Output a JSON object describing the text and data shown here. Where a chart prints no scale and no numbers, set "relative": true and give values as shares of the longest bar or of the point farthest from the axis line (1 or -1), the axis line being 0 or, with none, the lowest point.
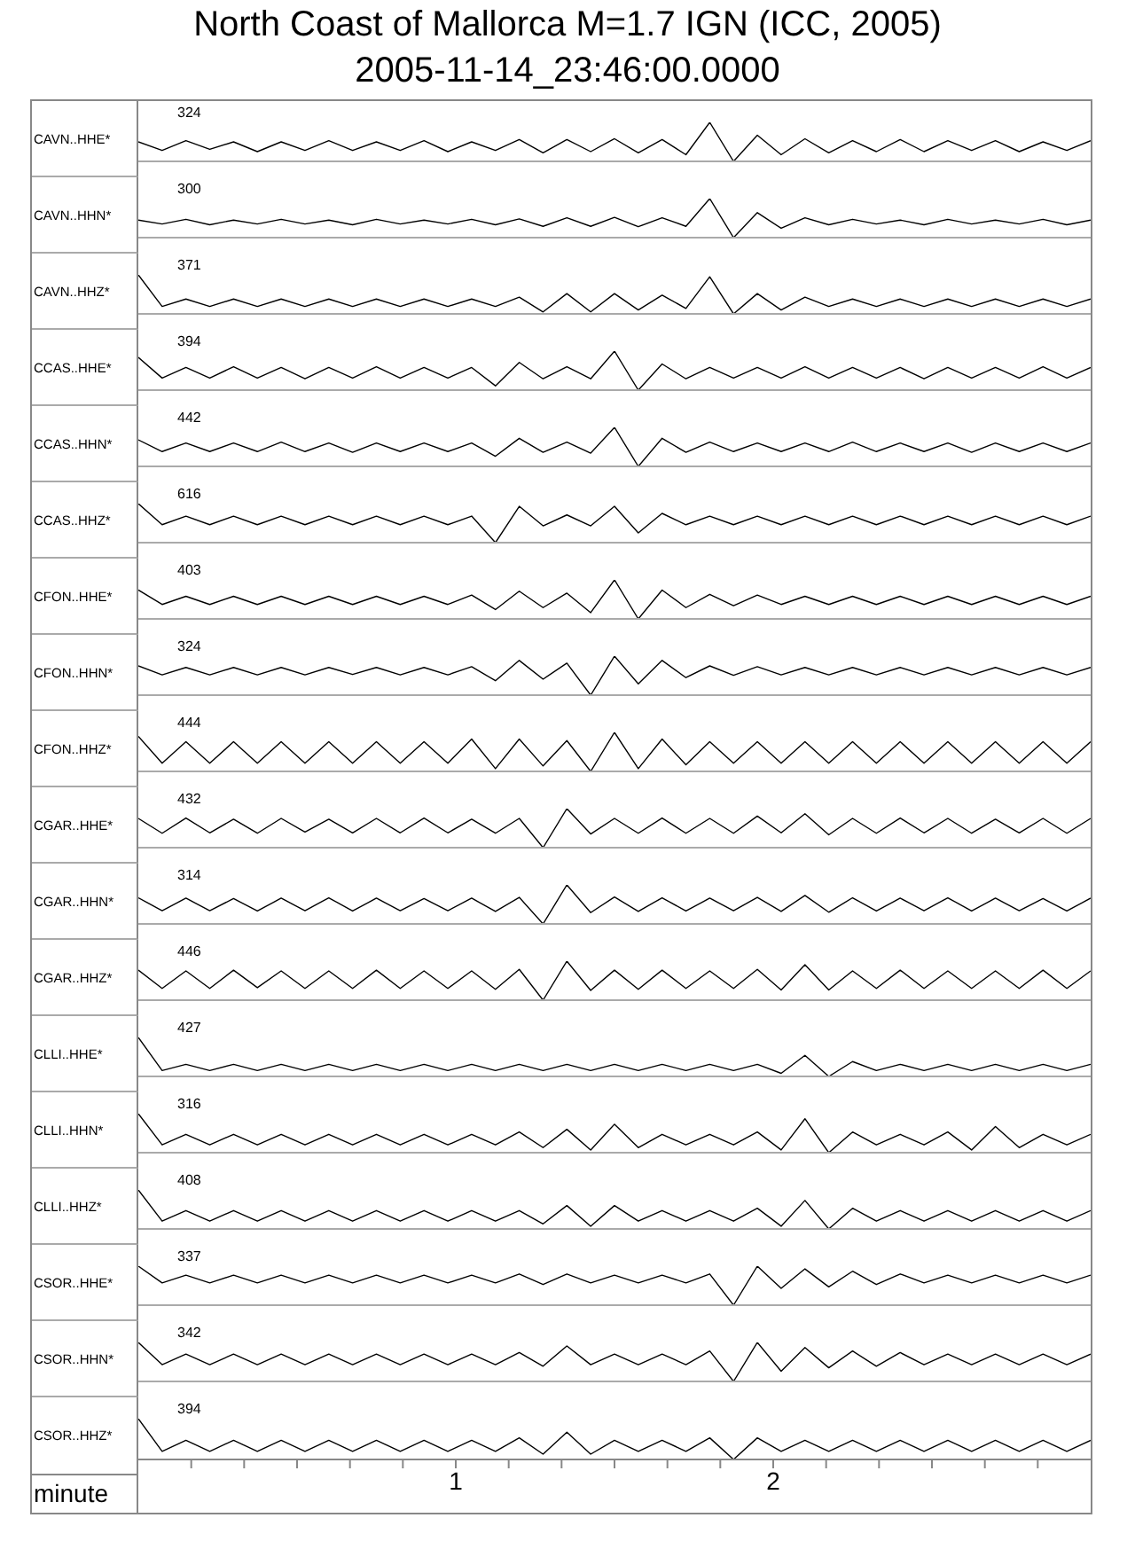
{
  "chart_data": [
    {
      "type": "line",
      "title": "North Coast of Mallorca M=1.7 IGN (ICC, 2005)",
      "subtitle": "2005-11-14_23:46:00.0000",
      "ylabel": "CAVN..HHE*",
      "annotations": [
        "324"
      ],
      "relative": true,
      "xlim": [
        0,
        3
      ],
      "tick_labels": false,
      "color": "#000000",
      "x": [
        0,
        0.075,
        0.15,
        0.225,
        0.3,
        0.375,
        0.45,
        0.525,
        0.6,
        0.675,
        0.75,
        0.825,
        0.9,
        0.975,
        1.05,
        1.125,
        1.2,
        1.275,
        1.35,
        1.425,
        1.5,
        1.575,
        1.65,
        1.725,
        1.8,
        1.875,
        1.95,
        2.025,
        2.1,
        2.175,
        2.25,
        2.325,
        2.4,
        2.475,
        2.55,
        2.625,
        2.7,
        2.775,
        2.85,
        2.925,
        3
      ],
      "values": [
        0.5,
        0.28,
        0.53,
        0.31,
        0.5,
        0.25,
        0.5,
        0.28,
        0.53,
        0.28,
        0.5,
        0.28,
        0.53,
        0.25,
        0.5,
        0.28,
        0.56,
        0.22,
        0.56,
        0.25,
        0.58,
        0.22,
        0.56,
        0.17,
        1,
        0,
        0.67,
        0.17,
        0.58,
        0.22,
        0.53,
        0.25,
        0.56,
        0.25,
        0.53,
        0.28,
        0.53,
        0.25,
        0.5,
        0.28,
        0.53
      ]
    },
    {
      "type": "line",
      "ylabel": "CAVN..HHN*",
      "annotations": [
        "300"
      ],
      "relative": true,
      "xlim": [
        0,
        3
      ],
      "tick_labels": false,
      "color": "#000000",
      "x": [
        0,
        0.075,
        0.15,
        0.225,
        0.3,
        0.375,
        0.45,
        0.525,
        0.6,
        0.675,
        0.75,
        0.825,
        0.9,
        0.975,
        1.05,
        1.125,
        1.2,
        1.275,
        1.35,
        1.425,
        1.5,
        1.575,
        1.65,
        1.725,
        1.8,
        1.875,
        1.95,
        2.025,
        2.1,
        2.175,
        2.25,
        2.325,
        2.4,
        2.475,
        2.55,
        2.625,
        2.7,
        2.775,
        2.85,
        2.925,
        3
      ],
      "values": [
        0.45,
        0.35,
        0.47,
        0.33,
        0.45,
        0.35,
        0.47,
        0.35,
        0.45,
        0.33,
        0.47,
        0.35,
        0.45,
        0.35,
        0.47,
        0.33,
        0.48,
        0.29,
        0.51,
        0.29,
        0.52,
        0.28,
        0.51,
        0.29,
        1,
        0,
        0.64,
        0.24,
        0.51,
        0.33,
        0.47,
        0.35,
        0.45,
        0.33,
        0.47,
        0.35,
        0.45,
        0.35,
        0.47,
        0.33,
        0.45
      ]
    },
    {
      "type": "line",
      "ylabel": "CAVN..HHZ*",
      "annotations": [
        "371"
      ],
      "relative": true,
      "xlim": [
        0,
        3
      ],
      "tick_labels": false,
      "color": "#000000",
      "x": [
        0,
        0.075,
        0.15,
        0.225,
        0.3,
        0.375,
        0.45,
        0.525,
        0.6,
        0.675,
        0.75,
        0.825,
        0.9,
        0.975,
        1.05,
        1.125,
        1.2,
        1.275,
        1.35,
        1.425,
        1.5,
        1.575,
        1.65,
        1.725,
        1.8,
        1.875,
        1.95,
        2.025,
        2.1,
        2.175,
        2.25,
        2.325,
        2.4,
        2.475,
        2.55,
        2.625,
        2.7,
        2.775,
        2.85,
        2.925,
        3
      ],
      "values": [
        1,
        0.19,
        0.38,
        0.19,
        0.38,
        0.19,
        0.38,
        0.19,
        0.38,
        0.19,
        0.38,
        0.19,
        0.38,
        0.19,
        0.38,
        0.19,
        0.43,
        0.05,
        0.52,
        0.05,
        0.52,
        0.1,
        0.48,
        0.14,
        0.95,
        0,
        0.52,
        0.1,
        0.43,
        0.19,
        0.38,
        0.19,
        0.38,
        0.19,
        0.38,
        0.19,
        0.38,
        0.19,
        0.38,
        0.19,
        0.38
      ]
    },
    {
      "type": "line",
      "ylabel": "CCAS..HHE*",
      "annotations": [
        "394"
      ],
      "relative": true,
      "xlim": [
        0,
        3
      ],
      "tick_labels": false,
      "color": "#000000",
      "x": [
        0,
        0.075,
        0.15,
        0.225,
        0.3,
        0.375,
        0.45,
        0.525,
        0.6,
        0.675,
        0.75,
        0.825,
        0.9,
        0.975,
        1.05,
        1.125,
        1.2,
        1.275,
        1.35,
        1.425,
        1.5,
        1.575,
        1.65,
        1.725,
        1.8,
        1.875,
        1.95,
        2.025,
        2.1,
        2.175,
        2.25,
        2.325,
        2.4,
        2.475,
        2.55,
        2.625,
        2.7,
        2.775,
        2.85,
        2.925,
        3
      ],
      "values": [
        0.84,
        0.31,
        0.58,
        0.31,
        0.6,
        0.31,
        0.58,
        0.29,
        0.58,
        0.31,
        0.6,
        0.31,
        0.58,
        0.31,
        0.58,
        0.11,
        0.71,
        0.29,
        0.6,
        0.29,
        1,
        0,
        0.67,
        0.29,
        0.58,
        0.31,
        0.58,
        0.31,
        0.6,
        0.31,
        0.58,
        0.31,
        0.58,
        0.29,
        0.58,
        0.31,
        0.58,
        0.31,
        0.6,
        0.31,
        0.58
      ]
    },
    {
      "type": "line",
      "ylabel": "CCAS..HHN*",
      "annotations": [
        "442"
      ],
      "relative": true,
      "xlim": [
        0,
        3
      ],
      "tick_labels": false,
      "color": "#000000",
      "x": [
        0,
        0.075,
        0.15,
        0.225,
        0.3,
        0.375,
        0.45,
        0.525,
        0.6,
        0.675,
        0.75,
        0.825,
        0.9,
        0.975,
        1.05,
        1.125,
        1.2,
        1.275,
        1.35,
        1.425,
        1.5,
        1.575,
        1.65,
        1.725,
        1.8,
        1.875,
        1.95,
        2.025,
        2.1,
        2.175,
        2.25,
        2.325,
        2.4,
        2.475,
        2.55,
        2.625,
        2.7,
        2.775,
        2.85,
        2.925,
        3
      ],
      "values": [
        0.68,
        0.38,
        0.6,
        0.38,
        0.6,
        0.38,
        0.62,
        0.38,
        0.6,
        0.36,
        0.6,
        0.38,
        0.6,
        0.38,
        0.6,
        0.26,
        0.72,
        0.36,
        0.62,
        0.34,
        1,
        0,
        0.72,
        0.36,
        0.62,
        0.38,
        0.6,
        0.38,
        0.6,
        0.38,
        0.62,
        0.38,
        0.6,
        0.38,
        0.6,
        0.36,
        0.6,
        0.38,
        0.6,
        0.38,
        0.6
      ]
    },
    {
      "type": "line",
      "ylabel": "CCAS..HHZ*",
      "annotations": [
        "616"
      ],
      "relative": true,
      "xlim": [
        0,
        3
      ],
      "tick_labels": false,
      "color": "#000000",
      "x": [
        0,
        0.075,
        0.15,
        0.225,
        0.3,
        0.375,
        0.45,
        0.525,
        0.6,
        0.675,
        0.75,
        0.825,
        0.9,
        0.975,
        1.05,
        1.125,
        1.2,
        1.275,
        1.35,
        1.425,
        1.5,
        1.575,
        1.65,
        1.725,
        1.8,
        1.875,
        1.95,
        2.025,
        2.1,
        2.175,
        2.25,
        2.325,
        2.4,
        2.475,
        2.55,
        2.625,
        2.7,
        2.775,
        2.85,
        2.925,
        3
      ],
      "values": [
        1,
        0.46,
        0.68,
        0.46,
        0.68,
        0.46,
        0.68,
        0.46,
        0.68,
        0.46,
        0.68,
        0.46,
        0.68,
        0.46,
        0.68,
        0,
        0.93,
        0.43,
        0.71,
        0.43,
        0.93,
        0.25,
        0.75,
        0.46,
        0.68,
        0.46,
        0.68,
        0.46,
        0.68,
        0.46,
        0.68,
        0.46,
        0.68,
        0.46,
        0.68,
        0.46,
        0.68,
        0.46,
        0.68,
        0.46,
        0.68
      ]
    },
    {
      "type": "line",
      "ylabel": "CFON..HHE*",
      "annotations": [
        "403"
      ],
      "relative": true,
      "xlim": [
        0,
        3
      ],
      "tick_labels": false,
      "color": "#000000",
      "x": [
        0,
        0.075,
        0.15,
        0.225,
        0.3,
        0.375,
        0.45,
        0.525,
        0.6,
        0.675,
        0.75,
        0.825,
        0.9,
        0.975,
        1.05,
        1.125,
        1.2,
        1.275,
        1.35,
        1.425,
        1.5,
        1.575,
        1.65,
        1.725,
        1.8,
        1.875,
        1.95,
        2.025,
        2.1,
        2.175,
        2.25,
        2.325,
        2.4,
        2.475,
        2.55,
        2.625,
        2.7,
        2.775,
        2.85,
        2.925,
        3
      ],
      "values": [
        0.74,
        0.37,
        0.58,
        0.37,
        0.58,
        0.37,
        0.58,
        0.37,
        0.58,
        0.37,
        0.58,
        0.37,
        0.58,
        0.37,
        0.61,
        0.24,
        0.71,
        0.29,
        0.66,
        0.16,
        1,
        0,
        0.74,
        0.29,
        0.63,
        0.34,
        0.61,
        0.37,
        0.58,
        0.37,
        0.58,
        0.37,
        0.58,
        0.37,
        0.58,
        0.37,
        0.58,
        0.37,
        0.58,
        0.37,
        0.58
      ]
    },
    {
      "type": "line",
      "ylabel": "CFON..HHN*",
      "annotations": [
        "324"
      ],
      "relative": true,
      "xlim": [
        0,
        3
      ],
      "tick_labels": false,
      "color": "#000000",
      "x": [
        0,
        0.075,
        0.15,
        0.225,
        0.3,
        0.375,
        0.45,
        0.525,
        0.6,
        0.675,
        0.75,
        0.825,
        0.9,
        0.975,
        1.05,
        1.125,
        1.2,
        1.275,
        1.35,
        1.425,
        1.5,
        1.575,
        1.65,
        1.725,
        1.8,
        1.875,
        1.95,
        2.025,
        2.1,
        2.175,
        2.25,
        2.325,
        2.4,
        2.475,
        2.55,
        2.625,
        2.7,
        2.775,
        2.85,
        2.925,
        3
      ],
      "values": [
        0.75,
        0.52,
        0.71,
        0.52,
        0.71,
        0.52,
        0.71,
        0.52,
        0.71,
        0.53,
        0.71,
        0.52,
        0.71,
        0.52,
        0.73,
        0.37,
        0.89,
        0.41,
        0.82,
        0,
        1,
        0.29,
        0.89,
        0.45,
        0.75,
        0.51,
        0.73,
        0.52,
        0.71,
        0.52,
        0.71,
        0.52,
        0.71,
        0.52,
        0.71,
        0.52,
        0.71,
        0.52,
        0.71,
        0.52,
        0.71
      ]
    },
    {
      "type": "line",
      "ylabel": "CFON..HHZ*",
      "annotations": [
        "444"
      ],
      "relative": true,
      "xlim": [
        0,
        3
      ],
      "tick_labels": false,
      "color": "#000000",
      "x": [
        0,
        0.075,
        0.15,
        0.225,
        0.3,
        0.375,
        0.45,
        0.525,
        0.6,
        0.675,
        0.75,
        0.825,
        0.9,
        0.975,
        1.05,
        1.125,
        1.2,
        1.275,
        1.35,
        1.425,
        1.5,
        1.575,
        1.65,
        1.725,
        1.8,
        1.875,
        1.95,
        2.025,
        2.1,
        2.175,
        2.25,
        2.325,
        2.4,
        2.475,
        2.55,
        2.625,
        2.7,
        2.775,
        2.85,
        2.925,
        3
      ],
      "values": [
        0.9,
        0.21,
        0.76,
        0.21,
        0.76,
        0.21,
        0.76,
        0.21,
        0.76,
        0.21,
        0.76,
        0.21,
        0.76,
        0.21,
        0.83,
        0.07,
        0.83,
        0.14,
        0.79,
        0,
        1,
        0.07,
        0.83,
        0.17,
        0.76,
        0.21,
        0.76,
        0.21,
        0.76,
        0.21,
        0.76,
        0.21,
        0.76,
        0.21,
        0.76,
        0.21,
        0.76,
        0.21,
        0.76,
        0.21,
        0.76
      ]
    },
    {
      "type": "line",
      "ylabel": "CGAR..HHE*",
      "annotations": [
        "432"
      ],
      "relative": true,
      "xlim": [
        0,
        3
      ],
      "tick_labels": false,
      "color": "#000000",
      "x": [
        0,
        0.075,
        0.15,
        0.225,
        0.3,
        0.375,
        0.45,
        0.525,
        0.6,
        0.675,
        0.75,
        0.825,
        0.9,
        0.975,
        1.05,
        1.125,
        1.2,
        1.275,
        1.35,
        1.425,
        1.5,
        1.575,
        1.65,
        1.725,
        1.8,
        1.875,
        1.95,
        2.025,
        2.1,
        2.175,
        2.25,
        2.325,
        2.4,
        2.475,
        2.55,
        2.625,
        2.7,
        2.775,
        2.85,
        2.925,
        3
      ],
      "values": [
        0.75,
        0.37,
        0.76,
        0.38,
        0.73,
        0.37,
        0.75,
        0.4,
        0.73,
        0.38,
        0.75,
        0.38,
        0.76,
        0.38,
        0.73,
        0.37,
        0.75,
        0,
        1,
        0.35,
        0.75,
        0.37,
        0.76,
        0.37,
        0.75,
        0.37,
        0.81,
        0.38,
        0.87,
        0.33,
        0.75,
        0.37,
        0.76,
        0.38,
        0.75,
        0.37,
        0.73,
        0.38,
        0.75,
        0.37,
        0.75
      ]
    },
    {
      "type": "line",
      "ylabel": "CGAR..HHN*",
      "annotations": [
        "314"
      ],
      "relative": true,
      "xlim": [
        0,
        3
      ],
      "tick_labels": false,
      "color": "#000000",
      "x": [
        0,
        0.075,
        0.15,
        0.225,
        0.3,
        0.375,
        0.45,
        0.525,
        0.6,
        0.675,
        0.75,
        0.825,
        0.9,
        0.975,
        1.05,
        1.125,
        1.2,
        1.275,
        1.35,
        1.425,
        1.5,
        1.575,
        1.65,
        1.725,
        1.8,
        1.875,
        1.95,
        2.025,
        2.1,
        2.175,
        2.25,
        2.325,
        2.4,
        2.475,
        2.55,
        2.625,
        2.7,
        2.775,
        2.85,
        2.925,
        3
      ],
      "values": [
        0.67,
        0.34,
        0.66,
        0.34,
        0.65,
        0.33,
        0.66,
        0.34,
        0.67,
        0.33,
        0.66,
        0.34,
        0.65,
        0.34,
        0.66,
        0.32,
        0.68,
        0,
        1,
        0.29,
        0.69,
        0.32,
        0.67,
        0.33,
        0.66,
        0.34,
        0.68,
        0.32,
        0.73,
        0.3,
        0.67,
        0.33,
        0.66,
        0.34,
        0.67,
        0.33,
        0.66,
        0.34,
        0.65,
        0.33,
        0.66
      ]
    },
    {
      "type": "line",
      "ylabel": "CGAR..HHZ*",
      "annotations": [
        "446"
      ],
      "relative": true,
      "xlim": [
        0,
        3
      ],
      "tick_labels": false,
      "color": "#000000",
      "x": [
        0,
        0.075,
        0.15,
        0.225,
        0.3,
        0.375,
        0.45,
        0.525,
        0.6,
        0.675,
        0.75,
        0.825,
        0.9,
        0.975,
        1.05,
        1.125,
        1.2,
        1.275,
        1.35,
        1.425,
        1.5,
        1.575,
        1.65,
        1.725,
        1.8,
        1.875,
        1.95,
        2.025,
        2.1,
        2.175,
        2.25,
        2.325,
        2.4,
        2.475,
        2.55,
        2.625,
        2.7,
        2.775,
        2.85,
        2.925,
        3
      ],
      "values": [
        0.77,
        0.3,
        0.75,
        0.3,
        0.77,
        0.32,
        0.75,
        0.3,
        0.75,
        0.3,
        0.77,
        0.3,
        0.75,
        0.3,
        0.75,
        0.28,
        0.79,
        0,
        1,
        0.25,
        0.77,
        0.28,
        0.77,
        0.3,
        0.75,
        0.3,
        0.79,
        0.26,
        0.91,
        0.26,
        0.75,
        0.3,
        0.77,
        0.3,
        0.75,
        0.3,
        0.75,
        0.3,
        0.77,
        0.3,
        0.75
      ]
    },
    {
      "type": "line",
      "ylabel": "CLLI..HHE*",
      "annotations": [
        "427"
      ],
      "relative": true,
      "xlim": [
        0,
        3
      ],
      "tick_labels": false,
      "color": "#000000",
      "x": [
        0,
        0.075,
        0.15,
        0.225,
        0.3,
        0.375,
        0.45,
        0.525,
        0.6,
        0.675,
        0.75,
        0.825,
        0.9,
        0.975,
        1.05,
        1.125,
        1.2,
        1.275,
        1.35,
        1.425,
        1.5,
        1.575,
        1.65,
        1.725,
        1.8,
        1.875,
        1.95,
        2.025,
        2.1,
        2.175,
        2.25,
        2.325,
        2.4,
        2.475,
        2.55,
        2.625,
        2.7,
        2.775,
        2.85,
        2.925,
        3
      ],
      "values": [
        1,
        0.15,
        0.31,
        0.15,
        0.31,
        0.15,
        0.31,
        0.15,
        0.31,
        0.15,
        0.31,
        0.15,
        0.31,
        0.15,
        0.31,
        0.15,
        0.31,
        0.15,
        0.31,
        0.15,
        0.31,
        0.15,
        0.31,
        0.15,
        0.31,
        0.15,
        0.31,
        0.08,
        0.54,
        0,
        0.38,
        0.15,
        0.31,
        0.15,
        0.31,
        0.15,
        0.31,
        0.15,
        0.31,
        0.15,
        0.31
      ]
    },
    {
      "type": "line",
      "ylabel": "CLLI..HHN*",
      "annotations": [
        "316"
      ],
      "relative": true,
      "xlim": [
        0,
        3
      ],
      "tick_labels": false,
      "color": "#000000",
      "x": [
        0,
        0.075,
        0.15,
        0.225,
        0.3,
        0.375,
        0.45,
        0.525,
        0.6,
        0.675,
        0.75,
        0.825,
        0.9,
        0.975,
        1.05,
        1.125,
        1.2,
        1.275,
        1.35,
        1.425,
        1.5,
        1.575,
        1.65,
        1.725,
        1.8,
        1.875,
        1.95,
        2.025,
        2.1,
        2.175,
        2.25,
        2.325,
        2.4,
        2.475,
        2.55,
        2.625,
        2.7,
        2.775,
        2.85,
        2.925,
        3
      ],
      "values": [
        1,
        0.2,
        0.47,
        0.2,
        0.47,
        0.2,
        0.47,
        0.2,
        0.47,
        0.2,
        0.47,
        0.2,
        0.47,
        0.2,
        0.47,
        0.2,
        0.53,
        0.13,
        0.6,
        0.07,
        0.73,
        0.13,
        0.47,
        0.2,
        0.47,
        0.2,
        0.53,
        0.07,
        0.87,
        0,
        0.53,
        0.2,
        0.47,
        0.2,
        0.53,
        0.07,
        0.67,
        0.13,
        0.47,
        0.2,
        0.47
      ]
    },
    {
      "type": "line",
      "ylabel": "CLLI..HHZ*",
      "annotations": [
        "408"
      ],
      "relative": true,
      "xlim": [
        0,
        3
      ],
      "tick_labels": false,
      "color": "#000000",
      "x": [
        0,
        0.075,
        0.15,
        0.225,
        0.3,
        0.375,
        0.45,
        0.525,
        0.6,
        0.675,
        0.75,
        0.825,
        0.9,
        0.975,
        1.05,
        1.125,
        1.2,
        1.275,
        1.35,
        1.425,
        1.5,
        1.575,
        1.65,
        1.725,
        1.8,
        1.875,
        1.95,
        2.025,
        2.1,
        2.175,
        2.25,
        2.325,
        2.4,
        2.475,
        2.55,
        2.625,
        2.7,
        2.775,
        2.85,
        2.925,
        3
      ],
      "values": [
        1,
        0.2,
        0.47,
        0.2,
        0.47,
        0.2,
        0.47,
        0.2,
        0.47,
        0.2,
        0.47,
        0.2,
        0.47,
        0.2,
        0.47,
        0.2,
        0.47,
        0.13,
        0.6,
        0.07,
        0.6,
        0.2,
        0.47,
        0.2,
        0.47,
        0.2,
        0.53,
        0.07,
        0.73,
        0,
        0.53,
        0.2,
        0.47,
        0.2,
        0.47,
        0.2,
        0.47,
        0.2,
        0.47,
        0.2,
        0.47
      ]
    },
    {
      "type": "line",
      "ylabel": "CSOR..HHE*",
      "annotations": [
        "337"
      ],
      "relative": true,
      "xlim": [
        0,
        3
      ],
      "tick_labels": false,
      "color": "#000000",
      "x": [
        0,
        0.075,
        0.15,
        0.225,
        0.3,
        0.375,
        0.45,
        0.525,
        0.6,
        0.675,
        0.75,
        0.825,
        0.9,
        0.975,
        1.05,
        1.125,
        1.2,
        1.275,
        1.35,
        1.425,
        1.5,
        1.575,
        1.65,
        1.725,
        1.8,
        1.875,
        1.95,
        2.025,
        2.1,
        2.175,
        2.25,
        2.325,
        2.4,
        2.475,
        2.55,
        2.625,
        2.7,
        2.775,
        2.85,
        2.925,
        3
      ],
      "values": [
        1,
        0.57,
        0.77,
        0.57,
        0.77,
        0.57,
        0.77,
        0.57,
        0.77,
        0.57,
        0.77,
        0.57,
        0.77,
        0.57,
        0.77,
        0.57,
        0.8,
        0.53,
        0.8,
        0.57,
        0.77,
        0.57,
        0.77,
        0.57,
        0.8,
        0,
        1,
        0.43,
        0.93,
        0.47,
        0.87,
        0.53,
        0.8,
        0.57,
        0.77,
        0.57,
        0.77,
        0.57,
        0.77,
        0.57,
        0.77
      ]
    },
    {
      "type": "line",
      "ylabel": "CSOR..HHN*",
      "annotations": [
        "342"
      ],
      "relative": true,
      "xlim": [
        0,
        3
      ],
      "tick_labels": false,
      "color": "#000000",
      "x": [
        0,
        0.075,
        0.15,
        0.225,
        0.3,
        0.375,
        0.45,
        0.525,
        0.6,
        0.675,
        0.75,
        0.825,
        0.9,
        0.975,
        1.05,
        1.125,
        1.2,
        1.275,
        1.35,
        1.425,
        1.5,
        1.575,
        1.65,
        1.725,
        1.8,
        1.875,
        1.95,
        2.025,
        2.1,
        2.175,
        2.25,
        2.325,
        2.4,
        2.475,
        2.55,
        2.625,
        2.7,
        2.775,
        2.85,
        2.925,
        3
      ],
      "values": [
        1,
        0.43,
        0.7,
        0.43,
        0.7,
        0.43,
        0.7,
        0.43,
        0.7,
        0.43,
        0.7,
        0.43,
        0.7,
        0.43,
        0.7,
        0.43,
        0.74,
        0.39,
        0.91,
        0.43,
        0.7,
        0.43,
        0.7,
        0.43,
        0.78,
        0,
        1,
        0.26,
        0.87,
        0.35,
        0.78,
        0.39,
        0.74,
        0.43,
        0.7,
        0.43,
        0.7,
        0.43,
        0.7,
        0.43,
        0.7
      ]
    },
    {
      "type": "line",
      "ylabel": "CSOR..HHZ*",
      "annotations": [
        "394"
      ],
      "relative": true,
      "xlim": [
        0,
        3
      ],
      "xlabel": "minute",
      "tick_labels": "x",
      "color": "#000000",
      "xticks": [
        {
          "value": 0.1667,
          "label": null
        },
        {
          "value": 0.3333,
          "label": null
        },
        {
          "value": 0.5,
          "label": null
        },
        {
          "value": 0.6667,
          "label": null
        },
        {
          "value": 0.8333,
          "label": null
        },
        1,
        {
          "value": 1.1667,
          "label": null
        },
        {
          "value": 1.3333,
          "label": null
        },
        {
          "value": 1.5,
          "label": null
        },
        {
          "value": 1.6667,
          "label": null
        },
        {
          "value": 1.8333,
          "label": null
        },
        2,
        {
          "value": 2.1667,
          "label": null
        },
        {
          "value": 2.3333,
          "label": null
        },
        {
          "value": 2.5,
          "label": null
        },
        {
          "value": 2.6667,
          "label": null
        },
        {
          "value": 2.8333,
          "label": null
        }
      ],
      "x": [
        0,
        0.075,
        0.15,
        0.225,
        0.3,
        0.375,
        0.45,
        0.525,
        0.6,
        0.675,
        0.75,
        0.825,
        0.9,
        0.975,
        1.05,
        1.125,
        1.2,
        1.275,
        1.35,
        1.425,
        1.5,
        1.575,
        1.65,
        1.725,
        1.8,
        1.875,
        1.95,
        2.025,
        2.1,
        2.175,
        2.25,
        2.325,
        2.4,
        2.475,
        2.55,
        2.625,
        2.7,
        2.775,
        2.85,
        2.925,
        3
      ],
      "values": [
        1,
        0.2,
        0.47,
        0.2,
        0.47,
        0.2,
        0.47,
        0.2,
        0.47,
        0.2,
        0.47,
        0.2,
        0.47,
        0.2,
        0.47,
        0.2,
        0.53,
        0.13,
        0.67,
        0.13,
        0.47,
        0.2,
        0.47,
        0.2,
        0.53,
        0,
        0.53,
        0.2,
        0.47,
        0.2,
        0.47,
        0.2,
        0.47,
        0.2,
        0.47,
        0.2,
        0.47,
        0.2,
        0.47,
        0.2,
        0.47
      ]
    }
  ]
}
